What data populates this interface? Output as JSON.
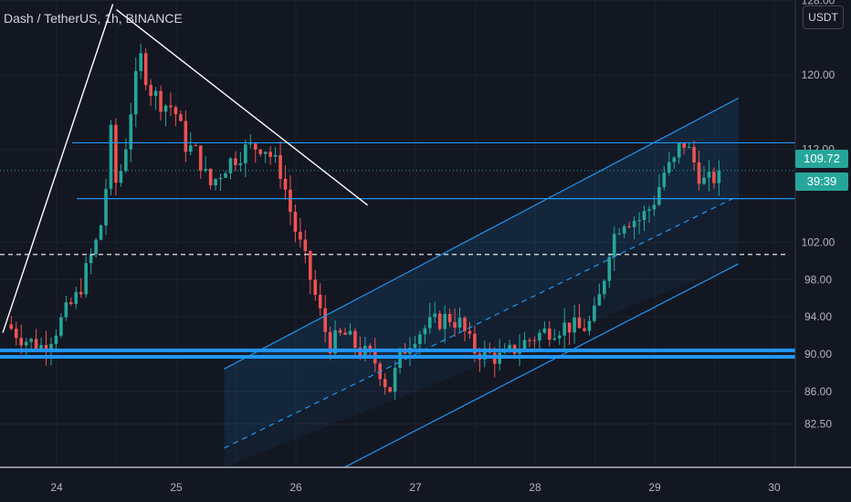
{
  "header": {
    "symbol_title": "Dash / TetherUS, 1h, BINANCE",
    "currency": "USDT"
  },
  "price_axis": {
    "ticks": [
      "120.00",
      "112.00",
      "102.00",
      "98.00",
      "94.00",
      "90.00",
      "86.00",
      "82.50"
    ],
    "top_partial": "128.00"
  },
  "price_tags": {
    "last_price": "109.72",
    "countdown": "39:39"
  },
  "time_axis": {
    "ticks": [
      "24",
      "25",
      "26",
      "27",
      "28",
      "29",
      "30"
    ]
  },
  "colors": {
    "background": "#131722",
    "up": "#26a69a",
    "down": "#ef5350",
    "drawing_blue": "#2196f3",
    "trend_white": "#ffffff"
  },
  "chart_data": {
    "type": "candlestick",
    "title": "Dash / TetherUS, 1h, BINANCE",
    "xlabel": "",
    "ylabel": "",
    "ylim": [
      79.5,
      128
    ],
    "x_range": [
      "Day 23 approx 14:00",
      "Day 30 approx 07:00"
    ],
    "grid": true,
    "last_price": 109.72,
    "price_path": [
      [
        23.6,
        93.2
      ],
      [
        23.75,
        91.6
      ],
      [
        23.9,
        90.8
      ],
      [
        24.0,
        92.3
      ],
      [
        24.1,
        94.5
      ],
      [
        24.2,
        96.4
      ],
      [
        24.3,
        100.2
      ],
      [
        24.38,
        103.0
      ],
      [
        24.43,
        107.0
      ],
      [
        24.46,
        115.5
      ],
      [
        24.52,
        108.0
      ],
      [
        24.58,
        110.8
      ],
      [
        24.65,
        117.0
      ],
      [
        24.72,
        122.0
      ],
      [
        24.8,
        118.5
      ],
      [
        24.9,
        117.0
      ],
      [
        25.0,
        116.5
      ],
      [
        25.1,
        112.5
      ],
      [
        25.2,
        111.5
      ],
      [
        25.3,
        108.0
      ],
      [
        25.45,
        110.5
      ],
      [
        25.6,
        112.0
      ],
      [
        25.75,
        112.5
      ],
      [
        25.9,
        109.5
      ],
      [
        26.0,
        104.0
      ],
      [
        26.1,
        100.0
      ],
      [
        26.2,
        95.5
      ],
      [
        26.3,
        91.0
      ],
      [
        26.42,
        92.2
      ],
      [
        26.55,
        90.5
      ],
      [
        26.7,
        89.0
      ],
      [
        26.8,
        86.0
      ],
      [
        26.9,
        90.0
      ],
      [
        27.0,
        92.0
      ],
      [
        27.15,
        93.2
      ],
      [
        27.3,
        94.0
      ],
      [
        27.4,
        93.2
      ],
      [
        27.5,
        90.5
      ],
      [
        27.62,
        90.0
      ],
      [
        27.75,
        89.5
      ],
      [
        27.85,
        90.6
      ],
      [
        28.0,
        91.8
      ],
      [
        28.15,
        92.7
      ],
      [
        28.3,
        93.1
      ],
      [
        28.4,
        92.6
      ],
      [
        28.5,
        93.5
      ],
      [
        28.58,
        97.0
      ],
      [
        28.65,
        102.0
      ],
      [
        28.75,
        104.5
      ],
      [
        28.9,
        104.5
      ],
      [
        29.0,
        106.0
      ],
      [
        29.1,
        109.5
      ],
      [
        29.18,
        110.5
      ],
      [
        29.25,
        113.0
      ],
      [
        29.32,
        111.5
      ],
      [
        29.42,
        108.5
      ],
      [
        29.5,
        108.6
      ],
      [
        29.55,
        109.72
      ]
    ],
    "drawings": {
      "horizontal_lines": [
        {
          "name": "resistance",
          "price": 112.7
        },
        {
          "name": "support-upper",
          "price": 106.7
        },
        {
          "name": "midline-dashed",
          "price": 100.7
        },
        {
          "name": "support-thick-1",
          "price": 90.4
        },
        {
          "name": "support-thick-2",
          "price": 89.7
        }
      ],
      "trend_lines": [
        {
          "name": "rise-line",
          "from": [
            23.55,
            92.3
          ],
          "to": [
            24.47,
            127.6
          ]
        },
        {
          "name": "fall-line",
          "from": [
            24.5,
            127.0
          ],
          "to": [
            26.6,
            106.0
          ]
        }
      ],
      "channel": {
        "upper": {
          "from": [
            25.4,
            88.4
          ],
          "to": [
            29.7,
            117.5
          ]
        },
        "middle": {
          "from": [
            25.4,
            79.9
          ],
          "to": [
            29.7,
            107.0
          ]
        },
        "lower": {
          "from": [
            25.45,
            71.5
          ],
          "to": [
            29.7,
            99.7
          ]
        }
      }
    }
  }
}
